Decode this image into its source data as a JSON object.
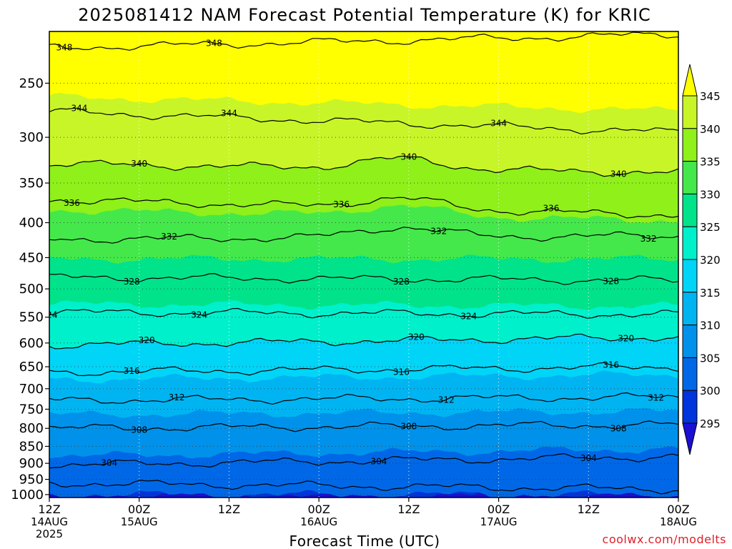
{
  "chart_data": {
    "type": "heatmap",
    "title": "2025081412 NAM Forecast Potential Temperature (K) for KRIC",
    "xlabel": "Forecast Time (UTC)",
    "ylabel": "",
    "x_ticks": [
      {
        "hours": 0,
        "label": "12Z",
        "sub1": "14AUG",
        "sub2": "2025"
      },
      {
        "hours": 12,
        "label": "00Z",
        "sub1": "15AUG",
        "sub2": ""
      },
      {
        "hours": 24,
        "label": "12Z",
        "sub1": "",
        "sub2": ""
      },
      {
        "hours": 36,
        "label": "00Z",
        "sub1": "16AUG",
        "sub2": ""
      },
      {
        "hours": 48,
        "label": "12Z",
        "sub1": "",
        "sub2": ""
      },
      {
        "hours": 60,
        "label": "00Z",
        "sub1": "17AUG",
        "sub2": ""
      },
      {
        "hours": 72,
        "label": "12Z",
        "sub1": "",
        "sub2": ""
      },
      {
        "hours": 84,
        "label": "00Z",
        "sub1": "18AUG",
        "sub2": ""
      }
    ],
    "y_ticks": [
      250,
      300,
      350,
      400,
      450,
      500,
      550,
      600,
      650,
      700,
      750,
      800,
      850,
      900,
      950,
      1000
    ],
    "y_unit": "hPa",
    "y_scale": "log",
    "y_range": [
      210,
      1010
    ],
    "x_range_hours": [
      0,
      84
    ],
    "colorbar": {
      "labels": [
        "345",
        "340",
        "335",
        "330",
        "325",
        "320",
        "315",
        "310",
        "305",
        "300",
        "295"
      ],
      "colors": [
        "#ffff00",
        "#c8f528",
        "#8ff01a",
        "#44e84a",
        "#00e38a",
        "#00f0cc",
        "#00d5f8",
        "#00b4f2",
        "#0092ea",
        "#0068e6",
        "#0034dc",
        "#1a0fd2"
      ],
      "levels": [
        295,
        300,
        305,
        310,
        315,
        320,
        325,
        330,
        335,
        340,
        345
      ]
    },
    "contours": [
      {
        "value": 300,
        "p_start": 962,
        "p_end": 982,
        "label_hour": 25
      },
      {
        "value": 304,
        "p_start": 905,
        "p_end": 880,
        "label_hour": 8
      },
      {
        "value": 308,
        "p_start": 800,
        "p_end": 790,
        "label_hour": 12
      },
      {
        "value": 312,
        "p_start": 728,
        "p_end": 720,
        "label_hour": 17
      },
      {
        "value": 316,
        "p_start": 662,
        "p_end": 650,
        "label_hour": 11
      },
      {
        "value": 320,
        "p_start": 604,
        "p_end": 588,
        "label_hour": 13
      },
      {
        "value": 324,
        "p_start": 541,
        "p_end": 545,
        "label_hour": 20
      },
      {
        "value": 328,
        "p_start": 481,
        "p_end": 486,
        "label_hour": 11
      },
      {
        "value": 332,
        "p_start": 423,
        "p_end": 418,
        "label_hour": 16
      },
      {
        "value": 336,
        "p_start": 370,
        "p_end": 390,
        "label_hour": 3
      },
      {
        "value": 340,
        "p_start": 328,
        "p_end": 338,
        "label_hour": 12
      },
      {
        "value": 344,
        "p_start": 275,
        "p_end": 295,
        "label_hour": 24
      },
      {
        "value": 348,
        "p_start": 222,
        "p_end": 212,
        "label_hour": 22
      }
    ],
    "grid": true,
    "ground_color": "#a0522d"
  },
  "credit": "coolwx.com/modelts"
}
